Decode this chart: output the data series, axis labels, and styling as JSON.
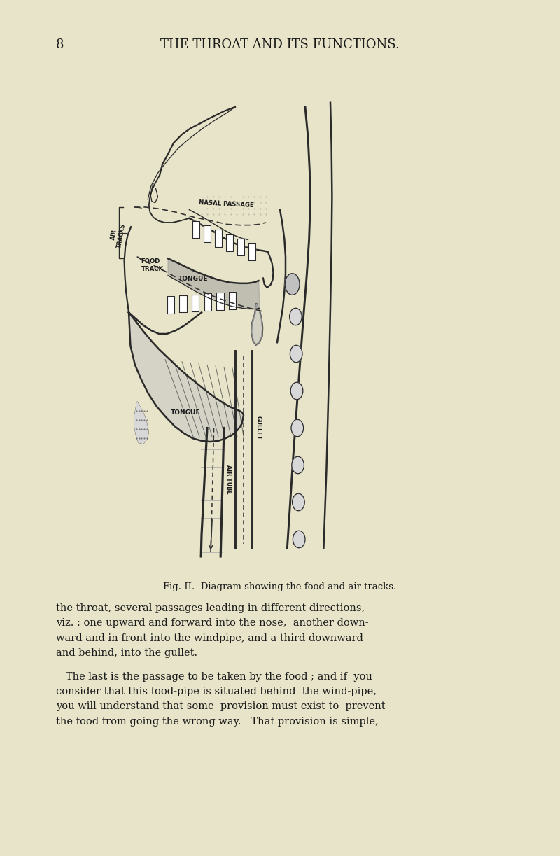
{
  "background_color": "#e8e4c9",
  "page_number": "8",
  "header_text": "THE THROAT AND ITS FUNCTIONS.",
  "caption_text": "Fig. II.  Diagram showing the food and air tracks.",
  "body_text_1": "the throat, several passages leading in different directions,\nviz. : one upward and forward into the nose,  another down-\nward and in front into the windpipe, and a third downward\nand behind, into the gullet.",
  "body_text_2": "   The last is the passage to be taken by the food ; and if  you\nconsider that this food-pipe is situated behind  the wind-pipe,\nyou will understand that some  provision must exist to  prevent\nthe food from going the wrong way.   That provision is simple,",
  "text_color": "#1a1a1a",
  "diagram_labels": {
    "nasal_passage": "NASAL PASSAGE",
    "air_tracks": "AIR\nTRACKS",
    "food_track": "FOOD\nTRACK",
    "tongue_upper": "TONGUE",
    "tongue_lower": "TONGUE",
    "gullet": "GULLET",
    "air_tube": "AIR TUBE"
  }
}
